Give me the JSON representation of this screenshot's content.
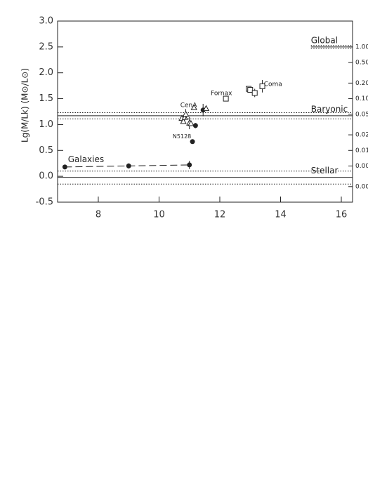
{
  "chart_data": {
    "type": "scatter",
    "y_label": "Lg(M/Lk) (M⊙/L⊙)",
    "xlim": [
      6.66,
      16.37
    ],
    "xticks": [
      8,
      10,
      12,
      14,
      16
    ],
    "ylim": [
      -0.5,
      3.0
    ],
    "yticks": [
      {
        "value": -0.5,
        "label": "-0.5"
      },
      {
        "value": 0,
        "label": "0.0"
      },
      {
        "value": 0.5,
        "label": "0.5"
      },
      {
        "value": 1,
        "label": "1.0"
      },
      {
        "value": 1.5,
        "label": "1.5"
      },
      {
        "value": 2,
        "label": "2.0"
      },
      {
        "value": 2.5,
        "label": "2.5"
      },
      {
        "value": 3,
        "label": "3.0"
      }
    ],
    "y2_log": true,
    "y2lim": [
      0.001,
      3.162
    ],
    "y2ticks": [
      {
        "value": 1,
        "label": "1.00"
      },
      {
        "value": 0.5,
        "label": "0.50"
      },
      {
        "value": 0.2,
        "label": "0.20"
      },
      {
        "value": 0.1,
        "label": "0.10"
      },
      {
        "value": 0.05,
        "label": "0.05"
      },
      {
        "value": 0.02,
        "label": "0.02"
      },
      {
        "value": 0.01,
        "label": "0.01"
      },
      {
        "value": 0.005,
        "label": "0.00"
      },
      {
        "value": 0.002,
        "label": "0.00"
      }
    ],
    "color": "#222",
    "series": [
      {
        "marker": "circle",
        "x": [
          6.9,
          9.0,
          11.0,
          11.1,
          11.2,
          11.45
        ],
        "values": [
          0.18,
          0.2,
          0.22,
          0.67,
          0.98,
          1.28
        ],
        "errors": [
          null,
          0.05,
          0.08,
          null,
          0.05,
          0.12
        ]
      },
      {
        "marker": "triangle",
        "x": [
          10.75,
          10.8,
          10.85,
          10.88,
          11.0,
          11.05,
          11.15,
          11.55
        ],
        "values": [
          1.12,
          1.06,
          1.14,
          1.2,
          1.03,
          1.02,
          1.33,
          1.31
        ],
        "errors": [
          null,
          null,
          null,
          0.1,
          0.12,
          null,
          null,
          null
        ]
      },
      {
        "marker": "square",
        "x": [
          12.2,
          12.95,
          13.0,
          13.15,
          13.4
        ],
        "values": [
          1.5,
          1.69,
          1.67,
          1.61,
          1.74
        ],
        "errors": [
          null,
          0.05,
          null,
          0.08,
          0.12
        ]
      }
    ],
    "hlines": [
      {
        "label": "Global",
        "y": 2.5,
        "band": [
          2.47,
          2.53
        ],
        "xmin": 15
      },
      {
        "label": "Baryonic",
        "y": 1.17,
        "band": [
          1.11,
          1.23
        ]
      },
      {
        "label": "Stellar",
        "y": -0.02,
        "band": [
          -0.15,
          0.1
        ]
      }
    ],
    "annotations": [
      "Galaxies",
      "CenA",
      "Fornax",
      "Coma",
      "N5128"
    ]
  }
}
